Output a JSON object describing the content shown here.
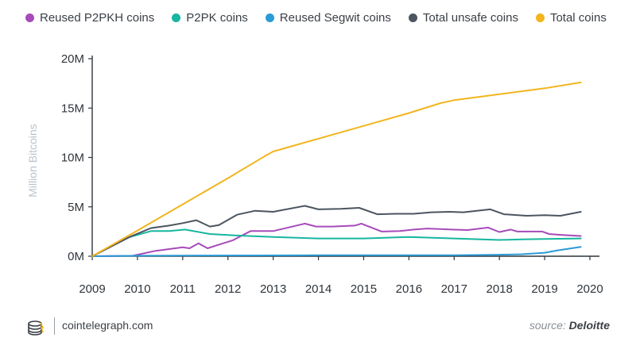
{
  "chart_data": {
    "type": "line",
    "title": "",
    "xlabel": "",
    "ylabel": "Million Bitcoins",
    "x_ticks": [
      "2009",
      "2010",
      "2011",
      "2012",
      "2013",
      "2014",
      "2015",
      "2016",
      "2017",
      "2018",
      "2019",
      "2020"
    ],
    "y_ticks": [
      "0M",
      "5M",
      "10M",
      "15M",
      "20M"
    ],
    "xlim": [
      2009,
      2020
    ],
    "ylim": [
      0,
      20
    ],
    "legend_position": "top",
    "series": [
      {
        "name": "Reused P2PKH coins",
        "color": "#a64bb9",
        "x": [
          2009.0,
          2009.9,
          2010.4,
          2011.0,
          2011.15,
          2011.35,
          2011.55,
          2011.75,
          2012.1,
          2012.5,
          2012.9,
          2013.0,
          2013.7,
          2013.95,
          2014.3,
          2014.8,
          2014.95,
          2015.4,
          2015.8,
          2016.1,
          2016.4,
          2016.7,
          2016.95,
          2017.3,
          2017.75,
          2018.0,
          2018.25,
          2018.4,
          2018.7,
          2018.95,
          2019.1,
          2019.4,
          2019.8
        ],
        "y": [
          0,
          0.05,
          0.55,
          0.9,
          0.8,
          1.3,
          0.8,
          1.1,
          1.6,
          2.55,
          2.55,
          2.55,
          3.3,
          3.0,
          3.0,
          3.1,
          3.3,
          2.5,
          2.55,
          2.7,
          2.8,
          2.75,
          2.7,
          2.65,
          2.9,
          2.45,
          2.7,
          2.5,
          2.5,
          2.5,
          2.25,
          2.15,
          2.05
        ]
      },
      {
        "name": "P2PK coins",
        "color": "#16b6a0",
        "x": [
          2009.0,
          2009.8,
          2010.3,
          2010.7,
          2011.05,
          2011.6,
          2012.2,
          2013.0,
          2014.0,
          2015.0,
          2016.0,
          2017.0,
          2018.0,
          2018.5,
          2019.0,
          2019.8
        ],
        "y": [
          0,
          1.9,
          2.55,
          2.55,
          2.7,
          2.25,
          2.1,
          1.95,
          1.8,
          1.8,
          1.95,
          1.8,
          1.65,
          1.7,
          1.75,
          1.8
        ]
      },
      {
        "name": "Reused Segwit coins",
        "color": "#2b9bd6",
        "x": [
          2009.0,
          2010.0,
          2014.0,
          2017.0,
          2018.0,
          2018.5,
          2019.0,
          2019.3,
          2019.8
        ],
        "y": [
          0,
          0.05,
          0.1,
          0.1,
          0.15,
          0.2,
          0.35,
          0.6,
          0.95
        ]
      },
      {
        "name": "Total unsafe coins",
        "color": "#4c5560",
        "x": [
          2009.0,
          2009.85,
          2010.3,
          2010.7,
          2011.0,
          2011.3,
          2011.6,
          2011.8,
          2012.2,
          2012.6,
          2013.0,
          2013.7,
          2014.0,
          2014.5,
          2014.9,
          2015.3,
          2015.7,
          2016.1,
          2016.5,
          2016.9,
          2017.2,
          2017.8,
          2018.1,
          2018.6,
          2019.0,
          2019.35,
          2019.8
        ],
        "y": [
          0,
          2.0,
          2.85,
          3.1,
          3.35,
          3.65,
          3.0,
          3.15,
          4.2,
          4.6,
          4.5,
          5.1,
          4.75,
          4.8,
          4.9,
          4.25,
          4.3,
          4.3,
          4.45,
          4.5,
          4.45,
          4.75,
          4.25,
          4.1,
          4.15,
          4.1,
          4.5
        ]
      },
      {
        "name": "Total coins",
        "color": "#f2b51d",
        "x": [
          2009.0,
          2010.0,
          2011.0,
          2012.0,
          2012.8,
          2013.0,
          2014.0,
          2015.0,
          2016.0,
          2016.7,
          2017.0,
          2018.0,
          2019.0,
          2019.8
        ],
        "y": [
          0,
          2.6,
          5.25,
          7.9,
          10.1,
          10.6,
          11.9,
          13.2,
          14.5,
          15.5,
          15.8,
          16.4,
          17.0,
          17.6
        ]
      }
    ]
  },
  "footer": {
    "site": "cointelegraph.com",
    "source_prefix": "source:",
    "source_name": "Deloitte"
  },
  "colors": {
    "axis": "#2f353b",
    "grid": "#e6e8ea",
    "tick_text": "#2f353b",
    "ylabel": "#b9c3cc"
  }
}
